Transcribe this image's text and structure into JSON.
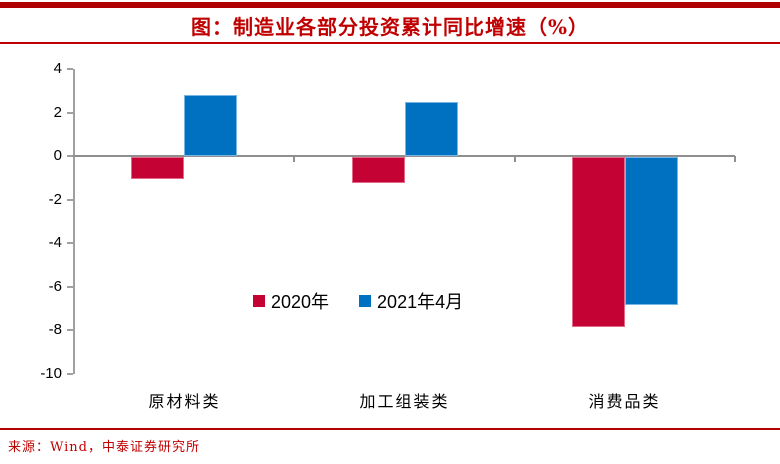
{
  "colors": {
    "band_red": "#b00000",
    "title_red": "#c00000",
    "rule_red": "#b40000",
    "axis_gray": "#a0a0a0",
    "series_red": "#c40233",
    "series_blue": "#0071c0"
  },
  "chart_data": {
    "type": "bar",
    "title": "图：制造业各部分投资累计同比增速（%）",
    "categories": [
      "原材料类",
      "加工组装类",
      "消费品类"
    ],
    "series": [
      {
        "name": "2020年",
        "color": "#c40233",
        "values": [
          -1.0,
          -1.2,
          -7.8
        ]
      },
      {
        "name": "2021年4月",
        "color": "#0071c0",
        "values": [
          2.8,
          2.5,
          -6.8
        ]
      }
    ],
    "yticks": [
      4,
      2,
      0,
      -2,
      -4,
      -6,
      -8,
      -10
    ],
    "ylim": [
      -10,
      4
    ],
    "xlabel": "",
    "ylabel": "",
    "grid": false,
    "legend_position": "inside-bottom-center"
  },
  "footer": {
    "source": "来源：Wind，中泰证券研究所"
  }
}
